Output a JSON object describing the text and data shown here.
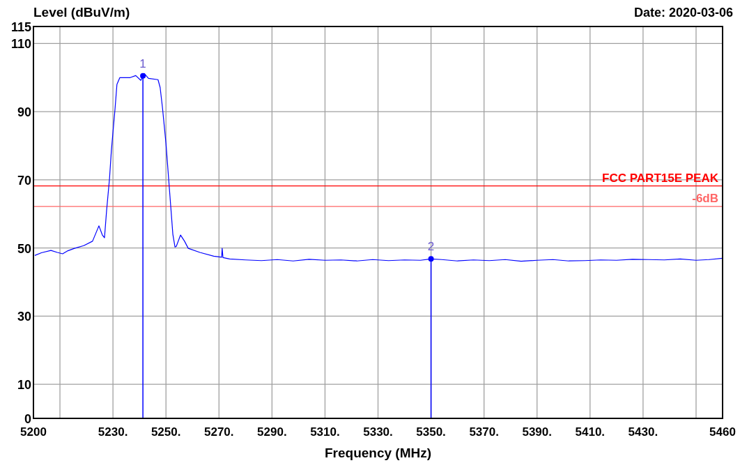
{
  "chart_data": {
    "type": "line",
    "xlabel": "Frequency (MHz)",
    "ylabel": "Level (dBuV/m)",
    "xlim": [
      5200,
      5460
    ],
    "ylim": [
      0,
      115
    ],
    "xticks": [
      5200,
      {
        "value": 5210,
        "label": null
      },
      {
        "value": 5230,
        "label": "5230."
      },
      {
        "value": 5250,
        "label": "5250."
      },
      {
        "value": 5270,
        "label": "5270."
      },
      {
        "value": 5290,
        "label": "5290."
      },
      {
        "value": 5310,
        "label": "5310."
      },
      {
        "value": 5330,
        "label": "5330."
      },
      {
        "value": 5350,
        "label": "5350."
      },
      {
        "value": 5370,
        "label": "5370."
      },
      {
        "value": 5390,
        "label": "5390."
      },
      {
        "value": 5410,
        "label": "5410."
      },
      {
        "value": 5430,
        "label": "5430."
      },
      {
        "value": 5450,
        "label": null
      },
      5460
    ],
    "yticks": [
      0,
      10,
      30,
      50,
      70,
      90,
      110,
      115
    ],
    "grid": true,
    "marker": "none",
    "line_style": "solid",
    "series": [
      {
        "color": "#0000ff",
        "x": [
          5200.5,
          5203,
          5206.6,
          5209,
          5211,
          5213,
          5215.5,
          5219,
          5222.3,
          5224.7,
          5226,
          5226.8,
          5227.6,
          5228.7,
          5229.4,
          5230.8,
          5231.5,
          5232.6,
          5236.5,
          5238.6,
          5240.5,
          5241.8,
          5243.4,
          5247,
          5247.8,
          5248.7,
          5250,
          5251,
          5251.8,
          5252.6,
          5253.4,
          5253.9,
          5255.5,
          5257,
          5258.4,
          5262.8,
          5268,
          5271,
          5271.2,
          5271.5,
          5274,
          5280,
          5286,
          5292,
          5298,
          5304,
          5310,
          5316,
          5322,
          5328,
          5334,
          5340,
          5346,
          5350,
          5354,
          5360,
          5366,
          5372,
          5378,
          5384,
          5390,
          5396,
          5402,
          5408,
          5414,
          5420,
          5426,
          5432,
          5438,
          5444,
          5450,
          5455,
          5460
        ],
        "values": [
          47.8,
          48.6,
          49.3,
          48.7,
          48.3,
          49.2,
          49.9,
          50.7,
          52,
          56.5,
          53.8,
          53,
          61,
          70.4,
          78.6,
          91,
          98,
          100,
          100,
          100.6,
          99.2,
          101.2,
          99.8,
          99.4,
          97.1,
          91,
          80.7,
          70.4,
          62.2,
          54,
          50.3,
          50.5,
          53.8,
          52,
          49.9,
          48.7,
          47.6,
          47.3,
          49.9,
          47.2,
          46.8,
          46.5,
          46.3,
          46.6,
          46.2,
          46.7,
          46.4,
          46.5,
          46.2,
          46.6,
          46.3,
          46.5,
          46.4,
          46.8,
          46.6,
          46.2,
          46.5,
          46.3,
          46.6,
          46.1,
          46.4,
          46.6,
          46.2,
          46.3,
          46.5,
          46.4,
          46.7,
          46.6,
          46.5,
          46.8,
          46.4,
          46.6,
          47
        ]
      },
      {
        "type": "lollipop",
        "color": "#0000ff",
        "marker": "circle",
        "x": [
          5241.3,
          5350
        ],
        "values": [
          100.5,
          46.8
        ]
      }
    ],
    "ref_lines": [
      {
        "axis": "y",
        "value": 68.2,
        "label": "FCC PART15E PEAK",
        "color": "#ff0000"
      },
      {
        "axis": "y",
        "value": 62.2,
        "label": "-6dB",
        "color": "#ff6666"
      }
    ],
    "annotations": [
      {
        "text": "1",
        "x": 5241.3,
        "y": 100.5
      },
      {
        "text": "2",
        "x": 5350,
        "y": 46.8
      },
      "Date: 2020-03-06"
    ]
  }
}
